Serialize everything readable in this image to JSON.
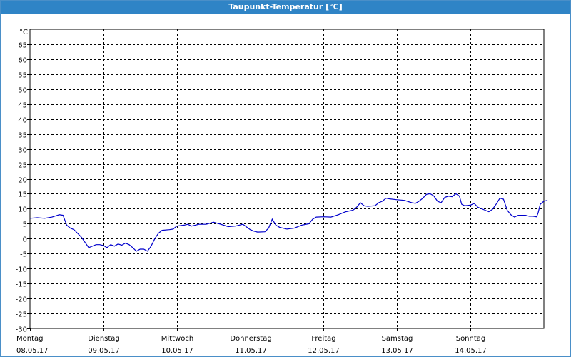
{
  "window": {
    "title": "Taupunkt-Temperatur [°C]",
    "title_bg": "#2f84c6"
  },
  "chart_data": {
    "type": "line",
    "title": "Taupunkt-Temperatur [°C]",
    "ylabel": "°C",
    "xlabel": "",
    "ylim": [
      -30,
      70
    ],
    "xlim": [
      0,
      7
    ],
    "yticks": [
      65,
      60,
      55,
      50,
      45,
      40,
      35,
      30,
      25,
      20,
      15,
      10,
      5,
      0,
      -5,
      -10,
      -15,
      -20,
      -25,
      -30
    ],
    "grid": true,
    "x_tick_labels": [
      {
        "day": "Montag",
        "date": "08.05.17"
      },
      {
        "day": "Dienstag",
        "date": "09.05.17"
      },
      {
        "day": "Mittwoch",
        "date": "10.05.17"
      },
      {
        "day": "Donnerstag",
        "date": "11.05.17"
      },
      {
        "day": "Freitag",
        "date": "12.05.17"
      },
      {
        "day": "Samstag",
        "date": "13.05.17"
      },
      {
        "day": "Sonntag",
        "date": "14.05.17"
      }
    ],
    "series": [
      {
        "color": "#0000cc",
        "points": [
          [
            0.0,
            6.8
          ],
          [
            0.1,
            7.0
          ],
          [
            0.2,
            6.8
          ],
          [
            0.3,
            7.2
          ],
          [
            0.4,
            8.0
          ],
          [
            0.45,
            7.8
          ],
          [
            0.5,
            4.5
          ],
          [
            0.55,
            3.5
          ],
          [
            0.6,
            3.0
          ],
          [
            0.7,
            0.5
          ],
          [
            0.8,
            -3.0
          ],
          [
            0.85,
            -2.5
          ],
          [
            0.9,
            -2.0
          ],
          [
            0.95,
            -2.0
          ],
          [
            1.0,
            -2.3
          ],
          [
            1.05,
            -3.0
          ],
          [
            1.1,
            -2.0
          ],
          [
            1.15,
            -2.5
          ],
          [
            1.2,
            -1.8
          ],
          [
            1.25,
            -2.2
          ],
          [
            1.3,
            -1.5
          ],
          [
            1.35,
            -2.0
          ],
          [
            1.4,
            -3.0
          ],
          [
            1.45,
            -4.2
          ],
          [
            1.5,
            -3.5
          ],
          [
            1.55,
            -3.5
          ],
          [
            1.6,
            -4.2
          ],
          [
            1.65,
            -2.5
          ],
          [
            1.7,
            0.0
          ],
          [
            1.75,
            1.8
          ],
          [
            1.8,
            2.8
          ],
          [
            1.9,
            3.0
          ],
          [
            1.95,
            3.2
          ],
          [
            2.0,
            4.2
          ],
          [
            2.1,
            4.5
          ],
          [
            2.15,
            4.8
          ],
          [
            2.2,
            4.2
          ],
          [
            2.3,
            4.8
          ],
          [
            2.4,
            4.8
          ],
          [
            2.5,
            5.5
          ],
          [
            2.6,
            4.8
          ],
          [
            2.7,
            4.0
          ],
          [
            2.8,
            4.2
          ],
          [
            2.9,
            4.8
          ],
          [
            3.0,
            3.0
          ],
          [
            3.05,
            2.5
          ],
          [
            3.1,
            2.2
          ],
          [
            3.2,
            2.3
          ],
          [
            3.25,
            3.5
          ],
          [
            3.3,
            6.5
          ],
          [
            3.35,
            4.5
          ],
          [
            3.4,
            3.8
          ],
          [
            3.5,
            3.2
          ],
          [
            3.6,
            3.5
          ],
          [
            3.7,
            4.5
          ],
          [
            3.8,
            5.0
          ],
          [
            3.85,
            6.5
          ],
          [
            3.9,
            7.2
          ],
          [
            4.0,
            7.3
          ],
          [
            4.1,
            7.2
          ],
          [
            4.2,
            8.0
          ],
          [
            4.3,
            9.0
          ],
          [
            4.4,
            9.5
          ],
          [
            4.45,
            10.5
          ],
          [
            4.5,
            12.0
          ],
          [
            4.55,
            11.0
          ],
          [
            4.6,
            10.8
          ],
          [
            4.7,
            11.0
          ],
          [
            4.75,
            12.0
          ],
          [
            4.8,
            12.5
          ],
          [
            4.85,
            13.5
          ],
          [
            4.9,
            13.3
          ],
          [
            5.0,
            13.0
          ],
          [
            5.1,
            12.8
          ],
          [
            5.2,
            12.0
          ],
          [
            5.25,
            11.8
          ],
          [
            5.3,
            12.5
          ],
          [
            5.35,
            13.5
          ],
          [
            5.4,
            14.8
          ],
          [
            5.45,
            15.0
          ],
          [
            5.5,
            14.3
          ],
          [
            5.55,
            12.5
          ],
          [
            5.6,
            12.0
          ],
          [
            5.65,
            13.8
          ],
          [
            5.7,
            14.2
          ],
          [
            5.75,
            14.0
          ],
          [
            5.8,
            15.0
          ],
          [
            5.85,
            14.2
          ],
          [
            5.88,
            11.5
          ],
          [
            5.92,
            11.0
          ],
          [
            6.0,
            11.2
          ],
          [
            6.05,
            11.8
          ],
          [
            6.1,
            10.5
          ],
          [
            6.2,
            9.5
          ],
          [
            6.25,
            9.0
          ],
          [
            6.3,
            9.8
          ],
          [
            6.35,
            11.5
          ],
          [
            6.4,
            13.5
          ],
          [
            6.45,
            13.2
          ],
          [
            6.5,
            9.5
          ],
          [
            6.55,
            8.0
          ],
          [
            6.6,
            7.2
          ],
          [
            6.65,
            7.8
          ],
          [
            6.75,
            7.8
          ],
          [
            6.8,
            7.5
          ],
          [
            6.85,
            7.5
          ],
          [
            6.9,
            7.3
          ],
          [
            6.92,
            8.5
          ],
          [
            6.95,
            11.5
          ],
          [
            7.0,
            12.5
          ],
          [
            7.05,
            12.8
          ]
        ]
      }
    ]
  }
}
